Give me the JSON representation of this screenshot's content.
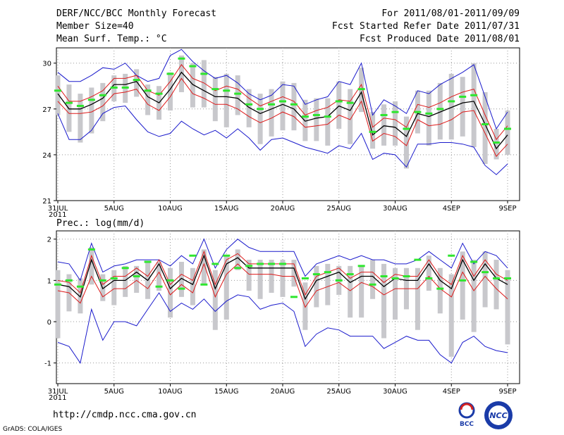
{
  "header": {
    "title": "DERF/NCC/BCC Monthly Forecast",
    "member_size": "Member Size=40",
    "variable_1": "Mean Surf. Temp.: °C",
    "period": "For 2011/08/01-2011/09/09",
    "started": "Fcst Started Refer Date 2011/07/31",
    "produced": "Fcst Produced Date 2011/08/01"
  },
  "footer": {
    "url": "http://cmdp.ncc.cma.gov.cn",
    "grads": "GrADS: COLA/IGES",
    "logo1_text": "BCC",
    "logo2_text": "NCC"
  },
  "colors": {
    "mean": "#000000",
    "spread": "#dd1a1a",
    "envelope": "#1a1acc",
    "box": "#c8c8cc",
    "obs": "#2ee62e",
    "grid": "#999999"
  },
  "chart_data": [
    {
      "type": "line",
      "title": "Mean Surf. Temp.: °C",
      "ylim": [
        21,
        31
      ],
      "yticks": [
        21,
        24,
        27,
        30
      ],
      "x_tick_labels": [
        "31JUL 2011",
        "5AUG",
        "10AUG",
        "15AUG",
        "20AUG",
        "25AUG",
        "30AUG",
        "4SEP",
        "9SEP"
      ],
      "x_tick_index": [
        0,
        5,
        10,
        15,
        20,
        25,
        30,
        35,
        40
      ],
      "series": [
        {
          "name": "ensemble-mean",
          "values": [
            28.0,
            27.0,
            27.0,
            27.3,
            27.7,
            28.6,
            28.6,
            28.8,
            27.8,
            27.4,
            28.3,
            29.4,
            28.6,
            28.2,
            27.8,
            27.8,
            27.7,
            27.1,
            26.7,
            27.0,
            27.3,
            27.0,
            26.2,
            26.4,
            26.5,
            27.2,
            26.9,
            28.1,
            25.3,
            25.9,
            25.8,
            25.2,
            26.7,
            26.5,
            26.8,
            27.1,
            27.4,
            27.5,
            26.0,
            24.4,
            25.3
          ]
        },
        {
          "name": "upper-spread",
          "values": [
            28.5,
            27.5,
            27.5,
            27.8,
            28.2,
            29.0,
            29.0,
            29.2,
            28.2,
            27.9,
            28.8,
            29.9,
            29.0,
            28.7,
            28.2,
            28.5,
            28.3,
            27.7,
            27.2,
            27.5,
            27.8,
            27.5,
            26.6,
            26.9,
            27.1,
            27.6,
            27.5,
            28.6,
            25.8,
            26.4,
            26.3,
            25.8,
            27.3,
            27.1,
            27.4,
            27.8,
            28.1,
            28.3,
            26.6,
            25.0,
            25.9
          ]
        },
        {
          "name": "lower-spread",
          "values": [
            27.5,
            26.7,
            26.7,
            26.8,
            27.2,
            28.0,
            28.1,
            28.3,
            27.3,
            26.9,
            27.8,
            29.0,
            28.0,
            27.7,
            27.3,
            27.3,
            27.0,
            26.5,
            26.1,
            26.4,
            26.8,
            26.5,
            25.8,
            25.9,
            26.0,
            26.6,
            26.3,
            27.5,
            24.9,
            25.4,
            25.2,
            24.6,
            26.3,
            25.9,
            26.0,
            26.3,
            26.8,
            26.9,
            25.4,
            23.9,
            24.7
          ]
        },
        {
          "name": "max-envelope",
          "values": [
            29.4,
            28.8,
            28.8,
            29.2,
            29.7,
            29.6,
            30.0,
            29.2,
            28.8,
            29.0,
            30.5,
            30.9,
            30.1,
            29.5,
            29.0,
            29.2,
            28.7,
            28.0,
            27.6,
            27.9,
            28.6,
            28.5,
            27.3,
            27.6,
            27.8,
            28.8,
            28.6,
            30.0,
            26.6,
            27.6,
            27.2,
            26.7,
            28.2,
            28.0,
            28.6,
            29.0,
            29.4,
            29.9,
            27.8,
            25.7,
            26.8
          ]
        },
        {
          "name": "min-envelope",
          "values": [
            26.7,
            25.0,
            25.0,
            25.6,
            26.7,
            27.1,
            27.2,
            26.3,
            25.5,
            25.2,
            25.4,
            26.2,
            25.7,
            25.3,
            25.6,
            25.1,
            25.7,
            25.1,
            24.3,
            25.0,
            25.1,
            24.8,
            24.5,
            24.3,
            24.1,
            24.6,
            24.4,
            25.4,
            23.7,
            24.1,
            24.0,
            23.2,
            24.7,
            24.7,
            24.8,
            24.8,
            24.7,
            24.5,
            23.3,
            22.7,
            23.4
          ]
        },
        {
          "name": "box-top",
          "values": [
            29.2,
            28.6,
            28.0,
            28.4,
            28.7,
            29.2,
            29.3,
            29.6,
            28.6,
            28.5,
            29.4,
            30.5,
            30.0,
            30.2,
            29.1,
            29.3,
            29.2,
            28.3,
            28.0,
            28.3,
            28.8,
            28.7,
            27.6,
            27.7,
            27.7,
            28.8,
            28.3,
            29.7,
            26.8,
            27.3,
            27.5,
            26.5,
            28.2,
            28.2,
            28.7,
            29.3,
            29.1,
            30.0,
            28.1,
            25.7,
            26.9
          ]
        },
        {
          "name": "box-bottom",
          "values": [
            26.6,
            25.5,
            24.8,
            25.4,
            26.2,
            27.5,
            27.4,
            27.8,
            26.6,
            26.3,
            26.9,
            28.1,
            27.1,
            27.1,
            26.2,
            25.8,
            26.6,
            25.8,
            24.7,
            25.2,
            25.6,
            25.6,
            24.9,
            24.9,
            24.6,
            25.7,
            24.7,
            26.8,
            24.4,
            24.6,
            24.6,
            23.1,
            25.4,
            24.6,
            25.0,
            25.0,
            25.2,
            24.5,
            23.4,
            23.7,
            24.0
          ]
        },
        {
          "name": "observation",
          "values": [
            28.2,
            27.4,
            27.2,
            27.6,
            27.9,
            28.4,
            28.4,
            28.9,
            28.2,
            28.0,
            29.3,
            30.3,
            29.8,
            29.3,
            28.3,
            28.2,
            28.0,
            27.3,
            27.0,
            27.3,
            27.5,
            27.3,
            26.5,
            26.6,
            26.5,
            27.5,
            27.4,
            28.3,
            25.5,
            26.6,
            26.8,
            25.7,
            26.8,
            26.7,
            27.0,
            27.5,
            27.8,
            27.9,
            26.0,
            24.8,
            25.7
          ]
        }
      ]
    },
    {
      "type": "line",
      "title": "Prec.: log(mm/d)",
      "ylim": [
        -1.5,
        2.2
      ],
      "yticks": [
        -1,
        0,
        1,
        2
      ],
      "x_tick_labels": [
        "31JUL 2011",
        "5AUG",
        "10AUG",
        "15AUG",
        "20AUG",
        "25AUG",
        "30AUG",
        "4SEP",
        "9SEP"
      ],
      "x_tick_index": [
        0,
        5,
        10,
        15,
        20,
        25,
        30,
        35,
        40
      ],
      "series": [
        {
          "name": "ensemble-mean",
          "values": [
            0.9,
            0.85,
            0.6,
            1.5,
            0.8,
            1.0,
            1.0,
            1.2,
            1.0,
            1.4,
            0.8,
            1.05,
            0.9,
            1.6,
            0.8,
            1.4,
            1.55,
            1.3,
            1.3,
            1.3,
            1.3,
            1.3,
            0.55,
            1.0,
            1.1,
            1.2,
            0.95,
            1.1,
            1.1,
            0.85,
            1.05,
            1.0,
            1.0,
            1.4,
            1.0,
            0.8,
            1.5,
            1.0,
            1.4,
            1.05,
            0.9
          ]
        },
        {
          "name": "upper-spread",
          "values": [
            1.0,
            0.95,
            0.7,
            1.6,
            0.9,
            1.1,
            1.1,
            1.3,
            1.1,
            1.5,
            0.9,
            1.15,
            1.0,
            1.7,
            0.9,
            1.5,
            1.65,
            1.4,
            1.4,
            1.4,
            1.4,
            1.4,
            0.65,
            1.1,
            1.2,
            1.3,
            1.05,
            1.2,
            1.2,
            0.95,
            1.15,
            1.1,
            1.1,
            1.5,
            1.1,
            0.9,
            1.6,
            1.1,
            1.5,
            1.15,
            1.0
          ]
        },
        {
          "name": "lower-spread",
          "values": [
            0.75,
            0.7,
            0.45,
            1.1,
            0.6,
            0.8,
            0.8,
            1.0,
            0.8,
            1.2,
            0.65,
            0.9,
            0.7,
            1.4,
            0.6,
            1.15,
            1.4,
            1.15,
            1.15,
            1.15,
            1.1,
            1.1,
            0.35,
            0.75,
            0.85,
            0.95,
            0.75,
            0.95,
            0.85,
            0.65,
            0.8,
            0.8,
            0.8,
            1.1,
            0.8,
            0.6,
            1.2,
            0.75,
            1.1,
            0.8,
            0.55
          ]
        },
        {
          "name": "max-envelope",
          "values": [
            1.45,
            1.4,
            1.0,
            1.9,
            1.2,
            1.35,
            1.4,
            1.5,
            1.5,
            1.5,
            1.35,
            1.6,
            1.4,
            2.0,
            1.3,
            1.75,
            2.0,
            1.8,
            1.7,
            1.7,
            1.7,
            1.7,
            1.1,
            1.4,
            1.5,
            1.6,
            1.5,
            1.6,
            1.5,
            1.5,
            1.4,
            1.4,
            1.5,
            1.7,
            1.5,
            1.3,
            1.9,
            1.4,
            1.7,
            1.6,
            1.3
          ]
        },
        {
          "name": "min-envelope",
          "values": [
            -0.5,
            -0.6,
            -1.0,
            0.3,
            -0.45,
            0.0,
            0.0,
            -0.1,
            0.3,
            0.7,
            0.25,
            0.45,
            0.3,
            0.55,
            0.25,
            0.5,
            0.65,
            0.6,
            0.3,
            0.4,
            0.45,
            0.25,
            -0.6,
            -0.3,
            -0.15,
            -0.2,
            -0.35,
            -0.35,
            -0.35,
            -0.65,
            -0.5,
            -0.35,
            -0.45,
            -0.45,
            -0.8,
            -1.0,
            -0.5,
            -0.35,
            -0.6,
            -0.7,
            -0.75
          ]
        },
        {
          "name": "box-top",
          "values": [
            1.25,
            1.15,
            1.05,
            1.8,
            1.15,
            1.25,
            1.35,
            1.35,
            1.45,
            1.45,
            1.3,
            1.45,
            1.3,
            1.75,
            1.25,
            1.6,
            1.75,
            1.5,
            1.5,
            1.5,
            1.5,
            1.5,
            0.95,
            1.35,
            1.4,
            1.35,
            1.35,
            1.35,
            1.5,
            1.4,
            1.3,
            1.3,
            1.3,
            1.6,
            1.3,
            1.15,
            1.7,
            1.5,
            1.7,
            1.5,
            1.25
          ]
        },
        {
          "name": "box-bottom",
          "values": [
            -0.4,
            0.25,
            0.2,
            0.9,
            0.5,
            0.4,
            0.6,
            0.7,
            0.55,
            0.75,
            0.1,
            0.6,
            0.4,
            0.9,
            -0.2,
            0.05,
            1.25,
            0.75,
            0.55,
            0.7,
            0.6,
            0.85,
            -0.2,
            0.35,
            0.4,
            0.65,
            0.1,
            0.1,
            0.55,
            -0.4,
            0.05,
            0.3,
            -0.2,
            0.75,
            0.2,
            -0.85,
            0.05,
            -0.25,
            0.35,
            0.3,
            -0.55
          ]
        },
        {
          "name": "observation",
          "values": [
            0.9,
            1.0,
            0.85,
            1.75,
            1.0,
            1.05,
            1.3,
            1.1,
            1.45,
            0.85,
            1.0,
            0.8,
            1.6,
            0.9,
            1.4,
            1.6,
            1.3,
            1.35,
            1.4,
            1.4,
            1.4,
            0.6,
            1.05,
            1.15,
            1.2,
            1.0,
            1.15,
            1.35,
            0.9,
            1.1,
            1.05,
            1.1,
            1.5,
            1.05,
            0.8,
            1.6,
            1.0,
            1.45,
            1.2,
            1.05,
            1.05
          ]
        }
      ]
    }
  ]
}
